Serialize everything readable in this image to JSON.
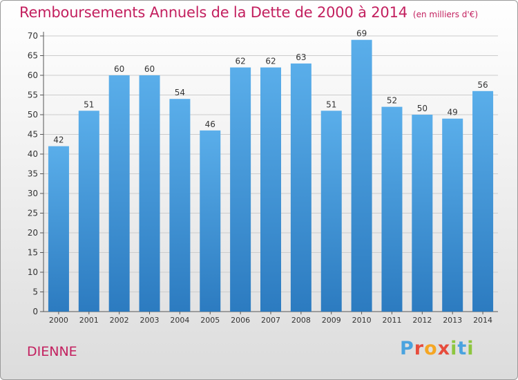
{
  "header": {
    "title": "Remboursements Annuels de la Dette de 2000 à 2014",
    "unit": "(en milliers d'€)"
  },
  "place": "DIENNE",
  "logo": {
    "text": "Proxiti",
    "letters": [
      {
        "ch": "P",
        "color": "#4aa3df"
      },
      {
        "ch": "r",
        "color": "#e74c3c"
      },
      {
        "ch": "o",
        "color": "#f5a623"
      },
      {
        "ch": "x",
        "color": "#e74c3c"
      },
      {
        "ch": "i",
        "color": "#8dc63f"
      },
      {
        "ch": "t",
        "color": "#4aa3df"
      },
      {
        "ch": "i",
        "color": "#8dc63f"
      }
    ]
  },
  "colors": {
    "title": "#c3205f",
    "bar_top": "#5aaeea",
    "bar_bottom": "#2c7bc0",
    "grid": "#cccccc",
    "axis": "#555555"
  },
  "chart_data": {
    "type": "bar",
    "title": "Remboursements Annuels de la Dette de 2000 à 2014",
    "subtitle": "(en milliers d'€)",
    "xlabel": "",
    "ylabel": "",
    "categories": [
      "2000",
      "2001",
      "2002",
      "2003",
      "2004",
      "2005",
      "2006",
      "2007",
      "2008",
      "2009",
      "2010",
      "2011",
      "2012",
      "2013",
      "2014"
    ],
    "values": [
      42,
      51,
      60,
      60,
      54,
      46,
      62,
      62,
      63,
      51,
      69,
      52,
      50,
      49,
      56
    ],
    "ylim": [
      0,
      70
    ],
    "yticks": [
      0,
      5,
      10,
      15,
      20,
      25,
      30,
      35,
      40,
      45,
      50,
      55,
      60,
      65,
      70
    ],
    "grid": true,
    "legend": "none"
  }
}
